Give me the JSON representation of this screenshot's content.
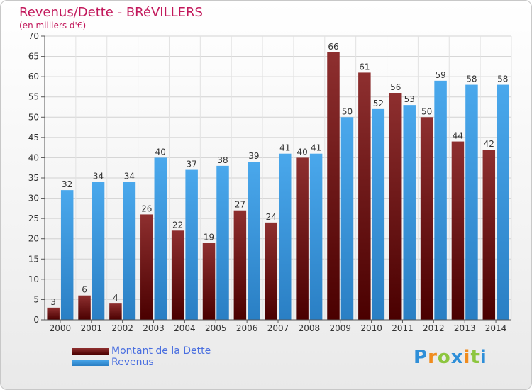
{
  "header": {
    "title": "Revenus/Dette - BRéVILLERS",
    "subtitle": "(en milliers d'€)"
  },
  "chart_data": {
    "type": "bar",
    "title": "Revenus/Dette - BRéVILLERS",
    "subtitle": "(en milliers d'€)",
    "categories": [
      "2000",
      "2001",
      "2002",
      "2003",
      "2004",
      "2005",
      "2006",
      "2007",
      "2008",
      "2009",
      "2010",
      "2011",
      "2012",
      "2013",
      "2014"
    ],
    "series": [
      {
        "name": "Montant de la Dette",
        "color": "#7a1f1f",
        "values": [
          3,
          6,
          4,
          26,
          22,
          19,
          27,
          24,
          40,
          66,
          61,
          56,
          50,
          44,
          42
        ]
      },
      {
        "name": "Revenus",
        "color": "#3d9be0",
        "values": [
          32,
          34,
          34,
          40,
          37,
          38,
          39,
          41,
          41,
          50,
          52,
          53,
          59,
          58,
          58
        ]
      }
    ],
    "yticks": [
      0,
      5,
      10,
      15,
      20,
      25,
      30,
      35,
      40,
      45,
      50,
      55,
      60,
      65,
      70
    ],
    "ylim": [
      0,
      70
    ],
    "grid": true,
    "legend": "bottom-left"
  },
  "legend": {
    "items": [
      {
        "label": "Montant de la Dette",
        "color": "#6b1414"
      },
      {
        "label": "Revenus",
        "color": "#3d9be0"
      }
    ]
  },
  "logo": {
    "letters": [
      "P",
      "r",
      "o",
      "x",
      "i",
      "t",
      "i"
    ],
    "colors": [
      "#2f8fd8",
      "#f08c1e",
      "#8dc63f",
      "#2f8fd8",
      "#f08c1e",
      "#8dc63f",
      "#2f8fd8"
    ]
  }
}
